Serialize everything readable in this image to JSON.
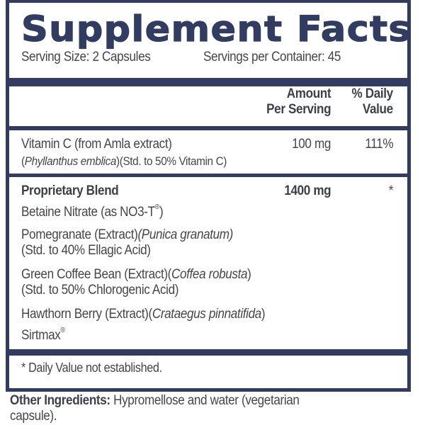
{
  "title": "Supplement Facts",
  "serving_size": "Serving Size: 2 Capsules",
  "servings_per_container": "Servings per Container: 45",
  "header": {
    "amount_line1": "Amount",
    "amount_line2": "Per Serving",
    "dv_line1": "% Daily",
    "dv_line2": "Value"
  },
  "vitamin_c": {
    "name": "Vitamin C (from Amla extract)",
    "latin": "Phyllanthus emblica",
    "std": "(Std. to 50% Vitamin C)",
    "amount": "100 mg",
    "dv": "111%"
  },
  "blend": {
    "name": "Proprietary Blend",
    "amount": "1400 mg",
    "dv": "*",
    "items": [
      {
        "name": "Betaine Nitrate (as NO3-T",
        "mark": "®",
        "close": ")"
      },
      {
        "name": "Pomegranate (Extract)",
        "latin": "(Punica granatum)",
        "std": "(Std. to 40% Ellagic Acid)"
      },
      {
        "name": "Green Coffee Bean (Extract)(",
        "latin": "Coffea robusta",
        "close": ")",
        "std": "(Std. to 50% Chlorogenic Acid)"
      },
      {
        "name": "Hawthorn Berry (Extract)(",
        "latin": "Crataegus pinnatifida",
        "close": ")"
      },
      {
        "name": "Sirtmax",
        "mark": "®"
      }
    ]
  },
  "footnote": "* Daily Value not established.",
  "other_ingredients": {
    "label": "Other Ingredients:",
    "text": " Hypromellose and water (vegetarian",
    "text2": "capsule)."
  },
  "colors": {
    "navy": "#313c60",
    "text": "#46464a"
  }
}
